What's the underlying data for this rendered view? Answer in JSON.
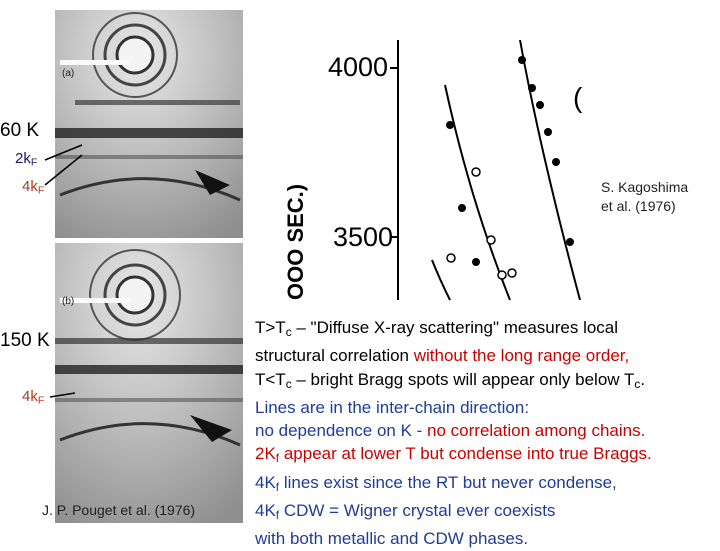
{
  "figure_left": {
    "panel_a_label": "(a)",
    "panel_b_label": "(b)",
    "label_60k": "60 K",
    "label_150k": "150 K",
    "label_2kf_a": {
      "base": "2k",
      "sub": "F"
    },
    "label_4kf_a": {
      "base": "4k",
      "sub": "F"
    },
    "label_4kf_b": {
      "base": "4k",
      "sub": "F"
    },
    "credit": "J. P. Pouget et al. (1976)"
  },
  "figure_right": {
    "ytick_top": "4000",
    "ytick_bottom": "3500",
    "axis_label": "OOO SEC.)",
    "paren": "(",
    "credit": "S. Kagoshima et al. (1976)"
  },
  "text": {
    "lines": [
      [
        {
          "text": "T>T",
          "color": "#000000"
        },
        {
          "sub": "c",
          "color": "#000000"
        },
        {
          "text": " – \"Diffuse X-ray scattering\" measures local",
          "color": "#000000"
        }
      ],
      [
        {
          "text": "structural correlation ",
          "color": "#000000"
        },
        {
          "text": "without the long range order,",
          "color": "#cc0000"
        }
      ],
      [
        {
          "text": "T<T",
          "color": "#000000"
        },
        {
          "sub": "c",
          "color": "#000000"
        },
        {
          "text": " – bright Bragg spots will appear only below T",
          "color": "#000000"
        },
        {
          "sub": "c",
          "color": "#000000"
        },
        {
          "text": ".",
          "color": "#000000"
        }
      ],
      [
        {
          "text": "Lines are in the inter-chain direction:",
          "color": "#1f3c99"
        }
      ],
      [
        {
          "text": "no dependence on K - ",
          "color": "#1f3c99"
        },
        {
          "text": "no correlation among chains.",
          "color": "#cc0000"
        }
      ],
      [
        {
          "text": "2K",
          "color": "#cc0000"
        },
        {
          "sub": "f",
          "color": "#cc0000"
        },
        {
          "text": " appear at lower T but condense into true Braggs.",
          "color": "#cc0000"
        }
      ],
      [
        {
          "text": "4K",
          "color": "#1f3c99"
        },
        {
          "sub": "f",
          "color": "#1f3c99"
        },
        {
          "text": " lines exist since the RT but never condense,",
          "color": "#1f3c99"
        }
      ],
      [
        {
          "text": "4K",
          "color": "#1f3c99"
        },
        {
          "sub": "f",
          "color": "#1f3c99"
        },
        {
          "text": " CDW = Wigner crystal ever coexists",
          "color": "#1f3c99"
        }
      ],
      [
        {
          "text": "with both metallic and CDW phases.",
          "color": "#1f3c99"
        }
      ]
    ]
  }
}
